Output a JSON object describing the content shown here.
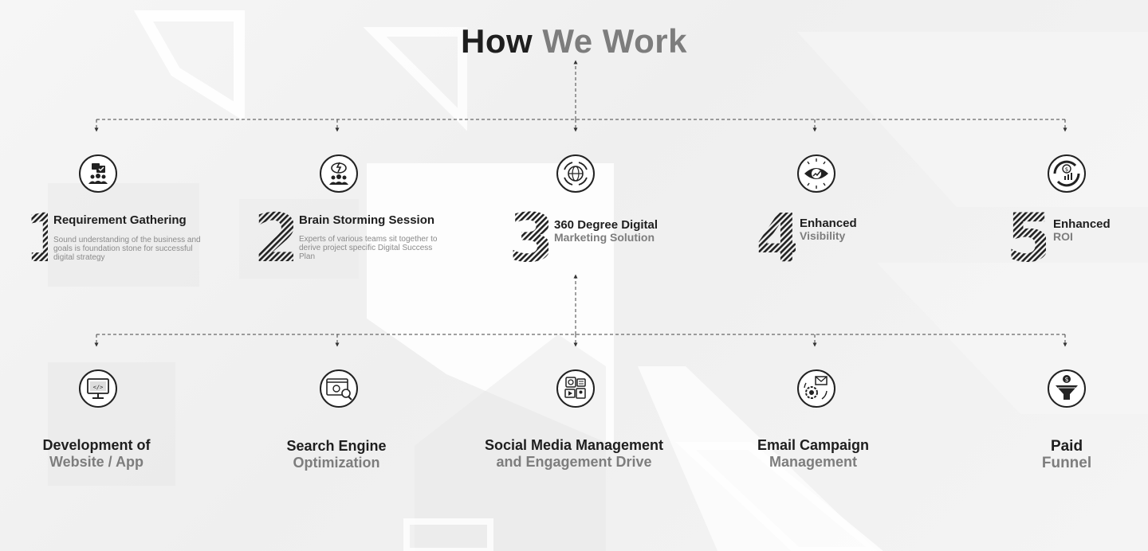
{
  "title": {
    "main": "How We Work",
    "part1": "How",
    "part2": "We Work"
  },
  "steps": [
    {
      "number": "1",
      "title": "Requirement Gathering",
      "subtitle": "",
      "description": "Sound understanding of the business and goals is foundation stone for successful digital strategy",
      "icon": "team-chat-check-icon"
    },
    {
      "number": "2",
      "title": "Brain Storming Session",
      "subtitle": "",
      "description": "Experts of various teams sit together to derive project specific Digital Success Plan",
      "icon": "team-idea-bolt-icon"
    },
    {
      "number": "3",
      "title": "360 Degree Digital",
      "subtitle": "Marketing Solution",
      "description": "",
      "icon": "globe-cycle-icon"
    },
    {
      "number": "4",
      "title": "Enhanced",
      "subtitle": "Visibility",
      "description": "",
      "icon": "eye-growth-icon"
    },
    {
      "number": "5",
      "title": "Enhanced",
      "subtitle": "ROI",
      "description": "",
      "icon": "dollar-growth-cycle-icon"
    }
  ],
  "services": [
    {
      "line1": "Development of",
      "line2": "Website / App",
      "icon": "monitor-code-icon"
    },
    {
      "line1": "Search Engine",
      "line2": "Optimization",
      "icon": "browser-seo-search-icon"
    },
    {
      "line1": "Social Media Management",
      "line2": "and Engagement Drive",
      "icon": "social-media-posts-icon"
    },
    {
      "line1": "Email Campaign",
      "line2": "Management",
      "icon": "email-gear-icon"
    },
    {
      "line1": "Paid",
      "line2": "Funnel",
      "icon": "dollar-funnel-icon"
    }
  ],
  "colors": {
    "dark": "#1e1e1e",
    "gray": "#7d7d7d",
    "light_text": "#8a8a8a",
    "background": "#f3f3f3"
  }
}
